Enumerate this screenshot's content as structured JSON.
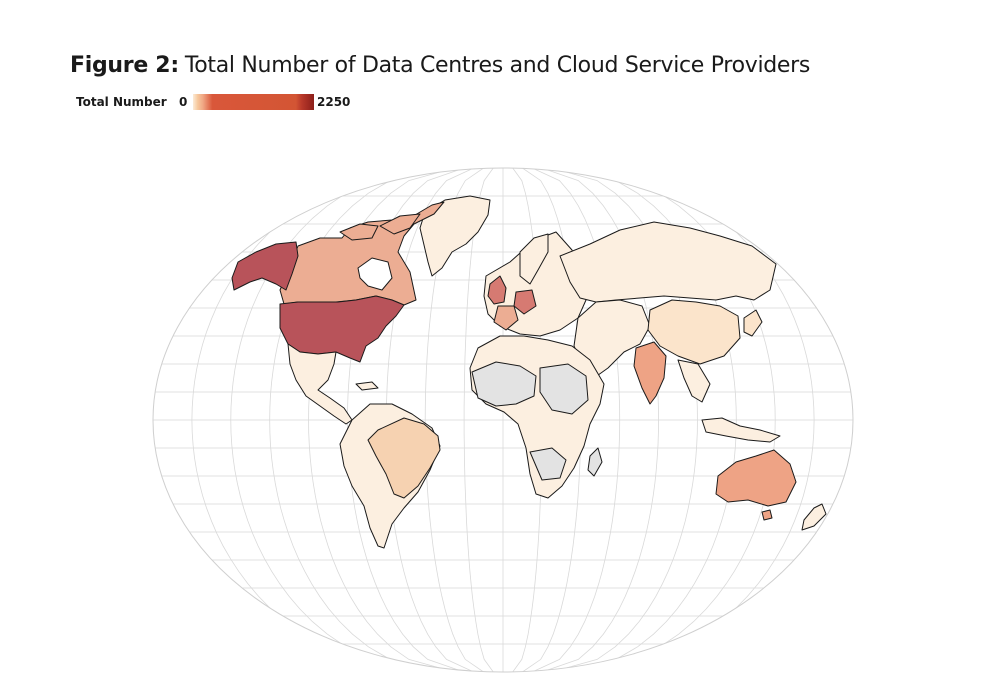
{
  "figure": {
    "label": "Figure 2:",
    "title": "Total Number of Data Centres and Cloud Service Providers"
  },
  "legend": {
    "title": "Total Number",
    "min": "0",
    "max": "2250",
    "colors": [
      "#fcebd7",
      "#f1a986",
      "#d35534",
      "#8c1f1a"
    ]
  },
  "map": {
    "projection": "Winkel tripel / elliptical world",
    "no_data_color": "#e3e3e3",
    "regions": [
      {
        "name": "United States",
        "shade": "dark"
      },
      {
        "name": "Alaska",
        "shade": "dark"
      },
      {
        "name": "Canada",
        "shade": "medium"
      },
      {
        "name": "Greenland",
        "shade": "light"
      },
      {
        "name": "Mexico",
        "shade": "light"
      },
      {
        "name": "Brazil",
        "shade": "light-medium"
      },
      {
        "name": "South America",
        "shade": "light"
      },
      {
        "name": "United Kingdom",
        "shade": "medium-dark"
      },
      {
        "name": "Germany",
        "shade": "medium-dark"
      },
      {
        "name": "France",
        "shade": "medium"
      },
      {
        "name": "Russia",
        "shade": "light"
      },
      {
        "name": "China",
        "shade": "light-medium"
      },
      {
        "name": "India",
        "shade": "medium"
      },
      {
        "name": "Australia",
        "shade": "medium"
      },
      {
        "name": "Africa",
        "shade": "mixed-nodata"
      }
    ]
  }
}
